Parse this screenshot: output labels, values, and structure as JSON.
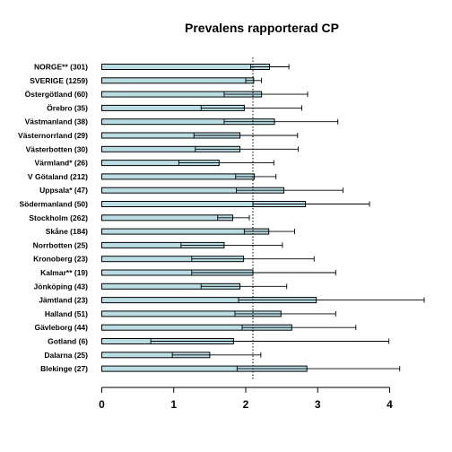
{
  "chart_data": {
    "type": "bar",
    "orientation": "horizontal",
    "title": "Prevalens rapporterad CP",
    "xlabel": "",
    "ylabel": "",
    "xlim": [
      0,
      4.4
    ],
    "x_ticks": [
      0,
      1,
      2,
      3,
      4
    ],
    "reference_line": 2.1,
    "grid": false,
    "categories": [
      "NORGE** (301)",
      "SVERIGE (1259)",
      "Östergötland (60)",
      "Örebro (35)",
      "Västmanland (38)",
      "Västernorrland (29)",
      "Västerbotten (30)",
      "Värmland* (26)",
      "V Götaland (212)",
      "Uppsala* (47)",
      "Södermanland (50)",
      "Stockholm (262)",
      "Skåne (184)",
      "Norrbotten (25)",
      "Kronoberg (23)",
      "Kalmar** (19)",
      "Jönköping (43)",
      "Jämtland (23)",
      "Halland (51)",
      "Gävleborg (44)",
      "Gotland (6)",
      "Dalarna (25)",
      "Blekinge (27)"
    ],
    "values": [
      2.33,
      2.11,
      2.22,
      1.98,
      2.4,
      1.92,
      1.92,
      1.63,
      2.12,
      2.53,
      2.83,
      1.82,
      2.32,
      1.7,
      1.97,
      2.1,
      1.92,
      2.98,
      2.49,
      2.64,
      1.83,
      1.5,
      2.85
    ],
    "ci_low": [
      2.07,
      2.0,
      1.7,
      1.38,
      1.7,
      1.28,
      1.3,
      1.07,
      1.86,
      1.87,
      2.1,
      1.61,
      1.98,
      1.1,
      1.25,
      1.25,
      1.38,
      1.9,
      1.85,
      1.95,
      0.68,
      0.98,
      1.88
    ],
    "ci_high": [
      2.6,
      2.22,
      2.86,
      2.78,
      3.28,
      2.72,
      2.73,
      2.39,
      2.42,
      3.35,
      3.72,
      2.05,
      2.68,
      2.51,
      2.95,
      3.25,
      2.57,
      4.48,
      3.25,
      3.53,
      3.99,
      2.21,
      4.14
    ]
  }
}
